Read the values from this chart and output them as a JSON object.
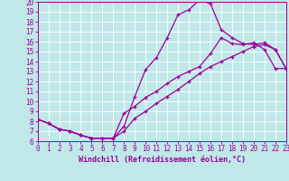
{
  "xlabel": "Windchill (Refroidissement éolien,°C)",
  "line_color": "#990099",
  "bg_color": "#c0e8e8",
  "grid_color": "#ffffff",
  "xlim": [
    0,
    23
  ],
  "ylim": [
    6,
    20
  ],
  "xticks": [
    0,
    1,
    2,
    3,
    4,
    5,
    6,
    7,
    8,
    9,
    10,
    11,
    12,
    13,
    14,
    15,
    16,
    17,
    18,
    19,
    20,
    21,
    22,
    23
  ],
  "yticks": [
    6,
    7,
    8,
    9,
    10,
    11,
    12,
    13,
    14,
    15,
    16,
    17,
    18,
    19,
    20
  ],
  "curve1_x": [
    0,
    1,
    2,
    3,
    4,
    5,
    6,
    7,
    8,
    9,
    10,
    11,
    12,
    13,
    14,
    15,
    16,
    17,
    18,
    19,
    20,
    21,
    22,
    23
  ],
  "curve1_y": [
    8.2,
    7.8,
    7.2,
    7.0,
    6.6,
    6.3,
    6.3,
    6.3,
    7.5,
    10.5,
    13.2,
    14.4,
    16.4,
    18.7,
    19.2,
    20.2,
    19.8,
    17.2,
    16.4,
    15.8,
    15.7,
    15.9,
    15.2,
    13.3
  ],
  "curve2_x": [
    0,
    1,
    2,
    3,
    4,
    5,
    6,
    7,
    8,
    9,
    10,
    11,
    12,
    13,
    14,
    15,
    16,
    17,
    18,
    19,
    20,
    21,
    22,
    23
  ],
  "curve2_y": [
    8.2,
    7.8,
    7.2,
    7.0,
    6.6,
    6.3,
    6.3,
    6.3,
    8.8,
    9.5,
    10.4,
    11.0,
    11.8,
    12.5,
    13.0,
    13.5,
    14.8,
    16.4,
    15.8,
    15.7,
    15.9,
    15.2,
    13.3,
    13.3
  ],
  "curve3_x": [
    0,
    1,
    2,
    3,
    4,
    5,
    6,
    7,
    8,
    9,
    10,
    11,
    12,
    13,
    14,
    15,
    16,
    17,
    18,
    19,
    20,
    21,
    22,
    23
  ],
  "curve3_y": [
    8.2,
    7.8,
    7.2,
    7.0,
    6.6,
    6.3,
    6.3,
    6.3,
    7.0,
    8.3,
    9.0,
    9.8,
    10.5,
    11.2,
    12.0,
    12.8,
    13.5,
    14.0,
    14.5,
    15.0,
    15.5,
    15.7,
    15.2,
    13.3
  ],
  "markersize": 3.5,
  "linewidth": 0.9,
  "tick_fontsize": 5.5,
  "label_fontsize": 6.0
}
